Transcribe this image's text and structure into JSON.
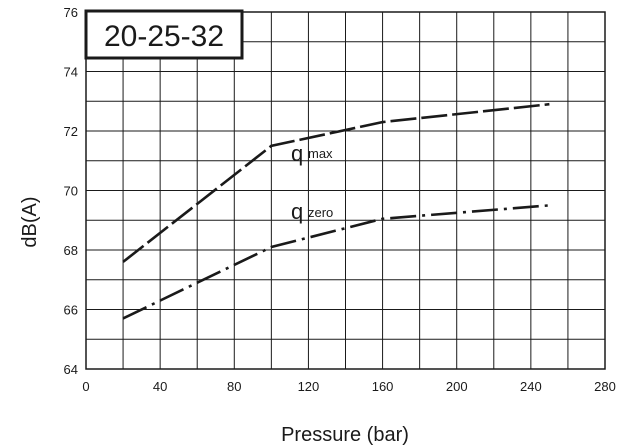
{
  "chart_data": {
    "type": "line",
    "title": "20-25-32",
    "xlabel": "Pressure (bar)",
    "ylabel": "dB(A)",
    "xlim": [
      0,
      280
    ],
    "ylim": [
      64,
      76
    ],
    "x_ticks": [
      "0",
      "40",
      "80",
      "120",
      "160",
      "200",
      "240",
      "280"
    ],
    "y_ticks": [
      "64",
      "66",
      "68",
      "70",
      "72",
      "74",
      "76"
    ],
    "grid": true,
    "series": [
      {
        "name": "max",
        "label_main": "q",
        "label_sub": "max",
        "line_style": "dashed",
        "x": [
          20,
          100,
          160,
          250
        ],
        "y": [
          67.6,
          71.5,
          72.3,
          72.9
        ]
      },
      {
        "name": "zero",
        "label_main": "q",
        "label_sub": "zero",
        "line_style": "dash-dot",
        "x": [
          20,
          100,
          160,
          250
        ],
        "y": [
          65.7,
          68.1,
          69.05,
          69.5
        ]
      }
    ]
  }
}
